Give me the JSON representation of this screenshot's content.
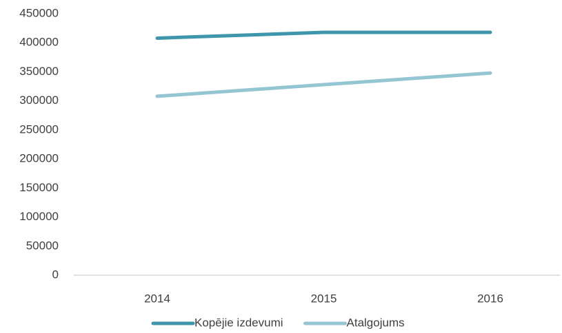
{
  "chart_data": {
    "type": "line",
    "categories": [
      "2014",
      "2015",
      "2016"
    ],
    "series": [
      {
        "name": "Kopējie izdevumi",
        "color": "#3f96aa",
        "values": [
          408000,
          418000,
          418000
        ]
      },
      {
        "name": "Atalgojums",
        "color": "#93c5d3",
        "values": [
          308000,
          328000,
          348000
        ]
      }
    ],
    "ylim": [
      0,
      450000
    ],
    "yticks": [
      0,
      50000,
      100000,
      150000,
      200000,
      250000,
      300000,
      350000,
      400000,
      450000
    ],
    "grid": false,
    "legend": "bottom"
  }
}
